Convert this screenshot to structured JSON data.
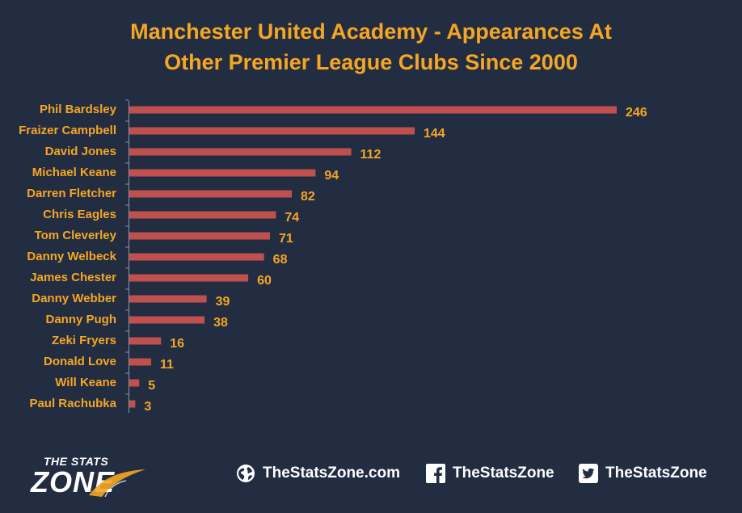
{
  "chart_data": {
    "type": "bar",
    "orientation": "horizontal",
    "title": "Manchester United Academy - Appearances At Other Premier League Clubs Since 2000",
    "title_lines": [
      "Manchester United Academy - Appearances At",
      "Other Premier League Clubs Since 2000"
    ],
    "categories": [
      "Phil Bardsley",
      "Fraizer Campbell",
      "David Jones",
      "Michael Keane",
      "Darren Fletcher",
      "Chris Eagles",
      "Tom Cleverley",
      "Danny Welbeck",
      "James Chester",
      "Danny Webber",
      "Danny Pugh",
      "Zeki Fryers",
      "Donald Love",
      "Will Keane",
      "Paul Rachubka"
    ],
    "values": [
      246,
      144,
      112,
      94,
      82,
      74,
      71,
      68,
      60,
      39,
      38,
      16,
      11,
      5,
      3
    ],
    "xlim": [
      0,
      246
    ],
    "data_labels": true,
    "grid": false,
    "legend": "none",
    "colors": {
      "background": "#232d42",
      "bar": "#c0504d",
      "title": "#f5a623",
      "category_label": "#f5a623",
      "value_label": "#f5a623",
      "axis": "#8a93a6"
    }
  },
  "footer": {
    "logo": {
      "top_text": "THE STATS",
      "main_text": "ZONE"
    },
    "links": [
      {
        "icon": "globe-icon",
        "label": "TheStatsZone.com"
      },
      {
        "icon": "facebook-icon",
        "label": "TheStatsZone"
      },
      {
        "icon": "twitter-icon",
        "label": "TheStatsZone"
      }
    ]
  }
}
